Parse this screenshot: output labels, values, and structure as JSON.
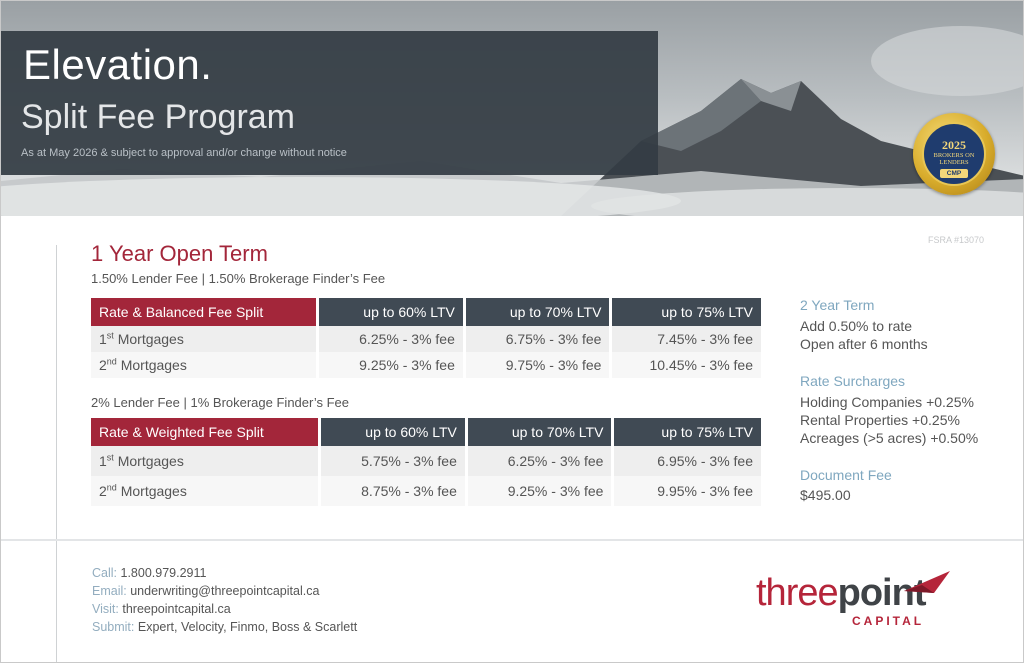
{
  "header": {
    "title": "Elevation.",
    "subtitle": "Split Fee Program",
    "note": "As at May 2026 & subject to approval and/or change without notice"
  },
  "badge": {
    "year": "2025",
    "line1": "BROKERS ON",
    "line2": "LENDERS",
    "mark": "CMP"
  },
  "fsra": "FSRA #13070",
  "main": {
    "section_title": "1 Year Open Term",
    "table1": {
      "fee_line": "1.50% Lender Fee | 1.50% Brokerage Finder’s Fee",
      "headers": [
        "Rate & Balanced Fee Split",
        "up to 60% LTV",
        "up to 70% LTV",
        "up to 75% LTV"
      ],
      "rows": [
        {
          "num": "1",
          "sup": "st",
          "label": " Mortgages",
          "cells": [
            "6.25% - 3% fee",
            "6.75% - 3% fee",
            "7.45% - 3% fee"
          ]
        },
        {
          "num": "2",
          "sup": "nd",
          "label": " Mortgages",
          "cells": [
            "9.25% - 3% fee",
            "9.75% - 3% fee",
            "10.45% - 3% fee"
          ]
        }
      ]
    },
    "table2": {
      "fee_line": "2% Lender Fee | 1% Brokerage Finder’s Fee",
      "headers": [
        "Rate & Weighted Fee Split",
        "up to 60% LTV",
        "up to 70% LTV",
        "up to 75% LTV"
      ],
      "rows": [
        {
          "num": "1",
          "sup": "st",
          "label": " Mortgages",
          "cells": [
            "5.75% - 3% fee",
            "6.25% - 3% fee",
            "6.95% - 3% fee"
          ]
        },
        {
          "num": "2",
          "sup": "nd",
          "label": " Mortgages",
          "cells": [
            "8.75% - 3% fee",
            "9.25% - 3% fee",
            "9.95% - 3% fee"
          ]
        }
      ]
    }
  },
  "side": {
    "term_title": "2 Year Term",
    "term_lines": [
      "Add 0.50% to rate",
      "Open after 6 months"
    ],
    "surcharge_title": "Rate Surcharges",
    "surcharge_lines": [
      "Holding Companies +0.25%",
      "Rental Properties +0.25%",
      "Acreages (>5 acres) +0.50%"
    ],
    "doc_title": "Document Fee",
    "doc_value": "$495.00"
  },
  "footer": {
    "call_label": "Call:",
    "call_value": "1.800.979.2911",
    "email_label": "Email:",
    "email_value": "underwriting@threepointcapital.ca",
    "visit_label": "Visit:",
    "visit_value": "threepointcapital.ca",
    "submit_label": "Submit:",
    "submit_value": "Expert, Velocity, Finmo, Boss & Scarlett"
  },
  "logo": {
    "word_a": "three",
    "word_b": "point",
    "sub": "CAPITAL"
  },
  "colors": {
    "brand_red": "#a3263a",
    "header_dark": "#404a54",
    "accent_blue": "#7fa7bf"
  }
}
